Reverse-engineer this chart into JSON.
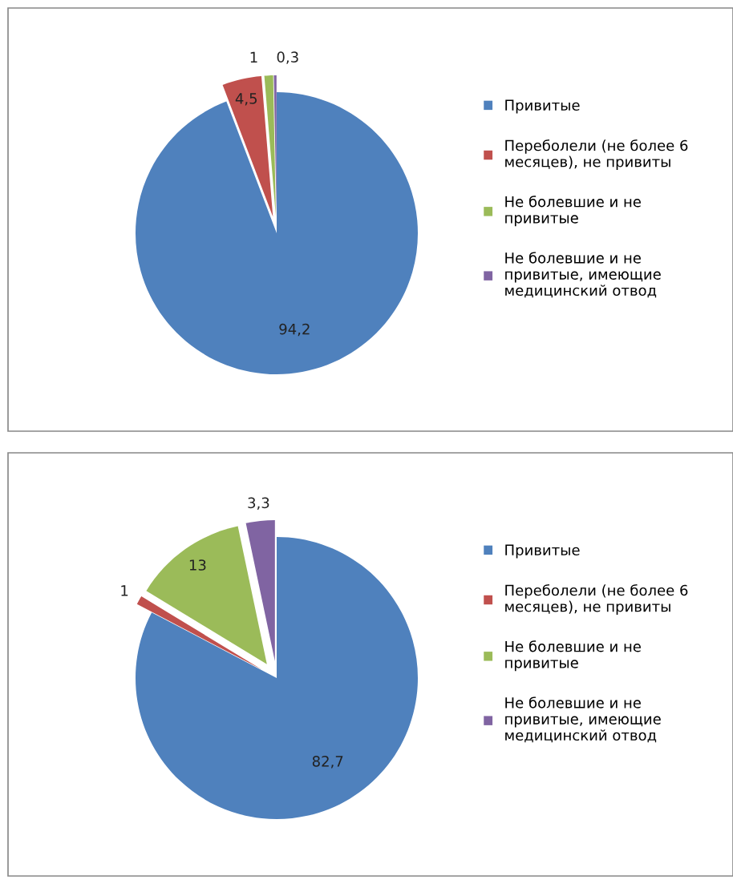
{
  "chart_data": [
    {
      "type": "pie",
      "categories": [
        "Привитые",
        "Переболели (не более 6 месяцев), не привиты",
        "Не болевшие и не привитые",
        "Не болевшие и не привитые, имеющие медицинский отвод"
      ],
      "values": [
        94.2,
        4.5,
        1,
        0.3
      ],
      "value_labels": [
        "94,2",
        "4,5",
        "1",
        "0,3"
      ],
      "colors": [
        "#4f81bd",
        "#c0504d",
        "#9bbb59",
        "#8064a2"
      ],
      "legend": "right"
    },
    {
      "type": "pie",
      "categories": [
        "Привитые",
        "Переболели (не более 6 месяцев), не привиты",
        "Не болевшие и не привитые",
        "Не болевшие и не привитые, имеющие медицинский отвод"
      ],
      "values": [
        82.7,
        1,
        13,
        3.3
      ],
      "value_labels": [
        "82,7",
        "1",
        "13",
        "3,3"
      ],
      "colors": [
        "#4f81bd",
        "#c0504d",
        "#9bbb59",
        "#8064a2"
      ],
      "legend": "right"
    }
  ]
}
